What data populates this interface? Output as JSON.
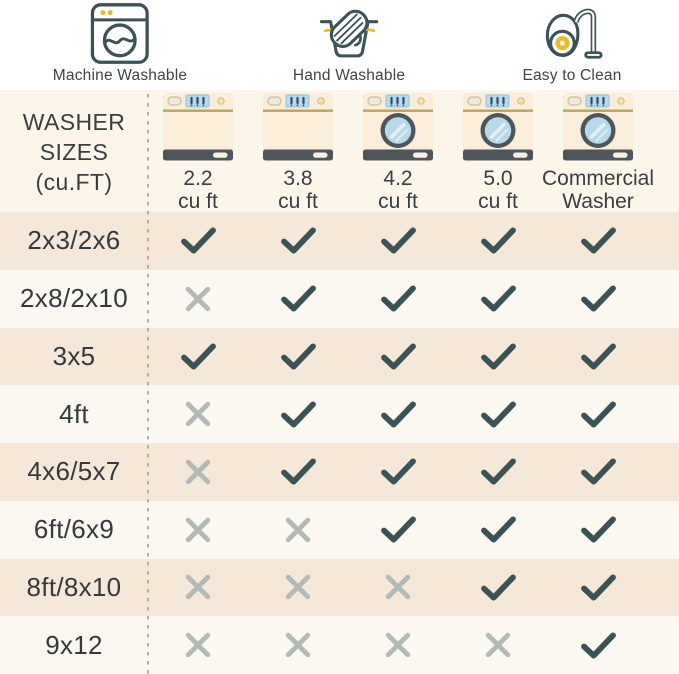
{
  "legend": {
    "items": [
      {
        "id": "machine-washable",
        "label": "Machine Washable",
        "icon": "washing-machine-icon"
      },
      {
        "id": "hand-washable",
        "label": "Hand Washable",
        "icon": "hand-wash-icon"
      },
      {
        "id": "easy-to-clean",
        "label": "Easy to Clean",
        "icon": "vacuum-icon"
      }
    ]
  },
  "table": {
    "corner_header": "WASHER\nSIZES\n(cu.FT)",
    "columns": [
      {
        "label_line1": "2.2",
        "label_line2": "cu ft",
        "washer_type": "top-load"
      },
      {
        "label_line1": "3.8",
        "label_line2": "cu ft",
        "washer_type": "top-load"
      },
      {
        "label_line1": "4.2",
        "label_line2": "cu ft",
        "washer_type": "front-load"
      },
      {
        "label_line1": "5.0",
        "label_line2": "cu ft",
        "washer_type": "front-load"
      },
      {
        "label_line1": "Commercial",
        "label_line2": "Washer",
        "washer_type": "front-load"
      }
    ],
    "rows": [
      {
        "label": "2x3/2x6",
        "compatible": [
          true,
          true,
          true,
          true,
          true
        ]
      },
      {
        "label": "2x8/2x10",
        "compatible": [
          false,
          true,
          true,
          true,
          true
        ]
      },
      {
        "label": "3x5",
        "compatible": [
          true,
          true,
          true,
          true,
          true
        ]
      },
      {
        "label": "4ft",
        "compatible": [
          false,
          true,
          true,
          true,
          true
        ]
      },
      {
        "label": "4x6/5x7",
        "compatible": [
          false,
          true,
          true,
          true,
          true
        ]
      },
      {
        "label": "6ft/6x9",
        "compatible": [
          false,
          false,
          true,
          true,
          true
        ]
      },
      {
        "label": "8ft/8x10",
        "compatible": [
          false,
          false,
          false,
          true,
          true
        ]
      },
      {
        "label": "9x12",
        "compatible": [
          false,
          false,
          false,
          false,
          true
        ]
      }
    ]
  },
  "colors": {
    "check": "#3d5254",
    "cross": "#b3bab6",
    "row_beige": "#f5e8d8",
    "row_light": "#fbf8f2",
    "header_bg": "#fbf5ea",
    "icon_outline": "#3d5254",
    "accent_gold": "#e9bb2b"
  }
}
